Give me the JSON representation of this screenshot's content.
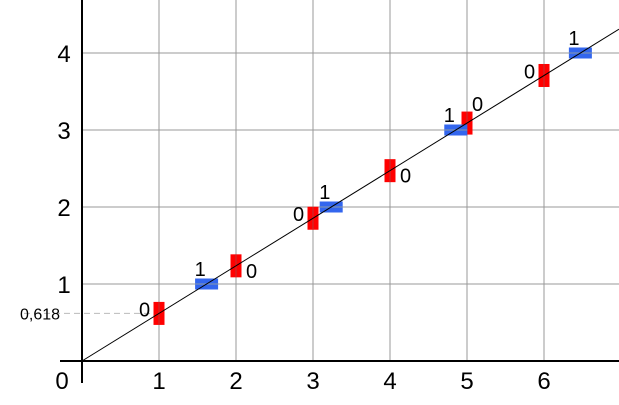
{
  "diagram": {
    "slope": 0.618,
    "slope_label": "0,618",
    "origin_label": "0",
    "x_ticks": [
      "1",
      "2",
      "3",
      "4",
      "5",
      "6"
    ],
    "y_ticks": [
      "1",
      "2",
      "3",
      "4"
    ],
    "x_range": [
      0,
      6.96
    ],
    "y_range": [
      0,
      4.7
    ],
    "colors": {
      "vertical_crossing": "#ff0000",
      "horizontal_crossing": "#3366ee",
      "grid": "#999999",
      "line": "#000000"
    },
    "vertical_crossings": [
      {
        "x": 1,
        "label": "0",
        "side": "left"
      },
      {
        "x": 2,
        "label": "0",
        "side": "right"
      },
      {
        "x": 3,
        "label": "0",
        "side": "left"
      },
      {
        "x": 4,
        "label": "0",
        "side": "right"
      },
      {
        "x": 5,
        "label": "0",
        "side": "right-up"
      },
      {
        "x": 6,
        "label": "0",
        "side": "left"
      }
    ],
    "horizontal_crossings": [
      {
        "y": 1,
        "label": "1"
      },
      {
        "y": 2,
        "label": "1"
      },
      {
        "y": 3,
        "label": "1"
      },
      {
        "y": 4,
        "label": "1"
      }
    ]
  }
}
